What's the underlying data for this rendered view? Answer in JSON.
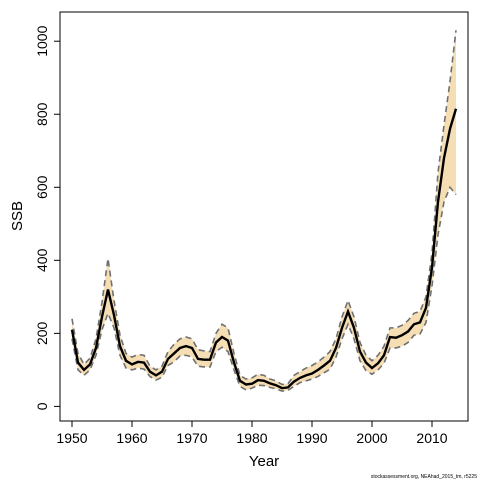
{
  "chart_data": {
    "type": "line",
    "title": "",
    "xlabel": "Year",
    "ylabel": "SSB",
    "xlim": [
      1948,
      2016
    ],
    "ylim": [
      -40,
      1080
    ],
    "xticks": [
      1950,
      1960,
      1970,
      1980,
      1990,
      2000,
      2010
    ],
    "yticks": [
      0,
      200,
      400,
      600,
      800,
      1000
    ],
    "footnote": "stockassessment.org, NEAhad_2015_tm, r5225",
    "colors": {
      "band": "#f5deb3",
      "estimate": "#000000",
      "bounds": "#707070"
    },
    "grid": false,
    "legend": "none",
    "series": [
      {
        "x": [
          1950,
          1951,
          1952,
          1953,
          1954,
          1955,
          1956,
          1957,
          1958,
          1959,
          1960,
          1961,
          1962,
          1963,
          1964,
          1965,
          1966,
          1967,
          1968,
          1969,
          1970,
          1971,
          1972,
          1973,
          1974,
          1975,
          1976,
          1977,
          1978,
          1979,
          1980,
          1981,
          1982,
          1983,
          1984,
          1985,
          1986,
          1987,
          1988,
          1989,
          1990,
          1991,
          1992,
          1993,
          1994,
          1995,
          1996,
          1997,
          1998,
          1999,
          2000,
          2001,
          2002,
          2003,
          2004,
          2005,
          2006,
          2007,
          2008,
          2009,
          2010,
          2011,
          2012,
          2013,
          2014
        ],
        "estimate": [
          210,
          120,
          100,
          115,
          160,
          245,
          320,
          250,
          165,
          125,
          115,
          122,
          120,
          95,
          85,
          95,
          130,
          145,
          160,
          165,
          160,
          130,
          128,
          128,
          175,
          190,
          180,
          120,
          70,
          60,
          62,
          72,
          70,
          63,
          58,
          50,
          52,
          68,
          78,
          85,
          90,
          100,
          112,
          125,
          160,
          215,
          260,
          215,
          150,
          120,
          105,
          118,
          140,
          190,
          188,
          195,
          205,
          225,
          230,
          270,
          380,
          560,
          680,
          760,
          815
        ],
        "upper": [
          240,
          145,
          115,
          132,
          185,
          285,
          405,
          290,
          195,
          145,
          135,
          142,
          140,
          110,
          100,
          110,
          150,
          170,
          185,
          190,
          185,
          155,
          152,
          150,
          200,
          225,
          215,
          145,
          85,
          75,
          78,
          88,
          85,
          75,
          70,
          60,
          62,
          85,
          95,
          105,
          112,
          122,
          135,
          150,
          185,
          245,
          290,
          245,
          175,
          140,
          125,
          140,
          165,
          215,
          215,
          222,
          235,
          255,
          260,
          300,
          420,
          640,
          770,
          890,
          1030
        ],
        "lower": [
          185,
          100,
          85,
          100,
          140,
          210,
          255,
          215,
          140,
          105,
          100,
          105,
          102,
          82,
          72,
          80,
          112,
          122,
          138,
          140,
          135,
          110,
          108,
          108,
          150,
          162,
          150,
          100,
          55,
          45,
          50,
          58,
          57,
          52,
          48,
          42,
          44,
          55,
          65,
          70,
          75,
          82,
          92,
          102,
          135,
          185,
          225,
          185,
          125,
          98,
          88,
          100,
          118,
          160,
          160,
          165,
          175,
          195,
          198,
          230,
          330,
          470,
          560,
          600,
          580
        ]
      }
    ]
  }
}
